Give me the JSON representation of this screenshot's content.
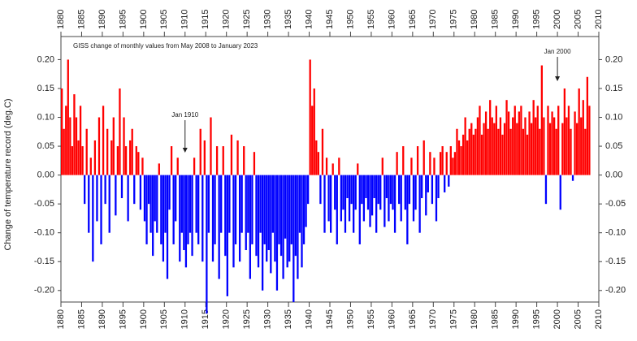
{
  "chart_data": {
    "type": "bar",
    "title": "GISS change of monthly values from May 2008 to January 2023",
    "y_label": "Change of temperature record (deg.C)",
    "positive_color": "#ff0000",
    "negative_color": "#0000ff",
    "xlim": [
      1880,
      2010
    ],
    "xticks": [
      1880,
      1885,
      1890,
      1895,
      1900,
      1905,
      1910,
      1915,
      1920,
      1925,
      1930,
      1935,
      1940,
      1945,
      1950,
      1955,
      1960,
      1965,
      1970,
      1975,
      1980,
      1985,
      1990,
      1995,
      2000,
      2005,
      2010
    ],
    "ylim": [
      -0.22,
      0.24
    ],
    "yticks": [
      {
        "value": -0.2,
        "label": "-0.20"
      },
      {
        "value": -0.15,
        "label": "-0.15"
      },
      {
        "value": -0.1,
        "label": "-0.10"
      },
      {
        "value": -0.05,
        "label": "-0.05"
      },
      {
        "value": 0,
        "label": "0.00"
      },
      {
        "value": 0.05,
        "label": "0.05"
      },
      {
        "value": 0.1,
        "label": "0.10"
      },
      {
        "value": 0.15,
        "label": "0.15"
      },
      {
        "value": 0.2,
        "label": "0.20"
      }
    ],
    "annotations": [
      {
        "text": "Jan 1910",
        "x": 1910
      },
      {
        "text": "Jan 2000",
        "x": 2000
      }
    ],
    "x": [
      1880,
      1880.5,
      1881,
      1881.5,
      1882,
      1882.5,
      1883,
      1883.5,
      1884,
      1884.5,
      1885,
      1885.5,
      1886,
      1886.5,
      1887,
      1887.5,
      1888,
      1888.5,
      1889,
      1889.5,
      1890,
      1890.5,
      1891,
      1891.5,
      1892,
      1892.5,
      1893,
      1893.5,
      1894,
      1894.5,
      1895,
      1895.5,
      1896,
      1896.5,
      1897,
      1897.5,
      1898,
      1898.5,
      1899,
      1899.5,
      1900,
      1900.5,
      1901,
      1901.5,
      1902,
      1902.5,
      1903,
      1903.5,
      1904,
      1904.5,
      1905,
      1905.5,
      1906,
      1906.5,
      1907,
      1907.5,
      1908,
      1908.5,
      1909,
      1909.5,
      1910,
      1910.5,
      1911,
      1911.5,
      1912,
      1912.5,
      1913,
      1913.5,
      1914,
      1914.5,
      1915,
      1915.5,
      1916,
      1916.5,
      1917,
      1917.5,
      1918,
      1918.5,
      1919,
      1919.5,
      1920,
      1920.5,
      1921,
      1921.5,
      1922,
      1922.5,
      1923,
      1923.5,
      1924,
      1924.5,
      1925,
      1925.5,
      1926,
      1926.5,
      1927,
      1927.5,
      1928,
      1928.5,
      1929,
      1929.5,
      1930,
      1930.5,
      1931,
      1931.5,
      1932,
      1932.5,
      1933,
      1933.5,
      1934,
      1934.5,
      1935,
      1935.5,
      1936,
      1936.5,
      1937,
      1937.5,
      1938,
      1938.5,
      1939,
      1939.5,
      1940,
      1940.5,
      1941,
      1941.5,
      1942,
      1942.5,
      1943,
      1943.5,
      1944,
      1944.5,
      1945,
      1945.5,
      1946,
      1946.5,
      1947,
      1947.5,
      1948,
      1948.5,
      1949,
      1949.5,
      1950,
      1950.5,
      1951,
      1951.5,
      1952,
      1952.5,
      1953,
      1953.5,
      1954,
      1954.5,
      1955,
      1955.5,
      1956,
      1956.5,
      1957,
      1957.5,
      1958,
      1958.5,
      1959,
      1959.5,
      1960,
      1960.5,
      1961,
      1961.5,
      1962,
      1962.5,
      1963,
      1963.5,
      1964,
      1964.5,
      1965,
      1965.5,
      1966,
      1966.5,
      1967,
      1967.5,
      1968,
      1968.5,
      1969,
      1969.5,
      1970,
      1970.5,
      1971,
      1971.5,
      1972,
      1972.5,
      1973,
      1973.5,
      1974,
      1974.5,
      1975,
      1975.5,
      1976,
      1976.5,
      1977,
      1977.5,
      1978,
      1978.5,
      1979,
      1979.5,
      1980,
      1980.5,
      1981,
      1981.5,
      1982,
      1982.5,
      1983,
      1983.5,
      1984,
      1984.5,
      1985,
      1985.5,
      1986,
      1986.5,
      1987,
      1987.5,
      1988,
      1988.5,
      1989,
      1989.5,
      1990,
      1990.5,
      1991,
      1991.5,
      1992,
      1992.5,
      1993,
      1993.5,
      1994,
      1994.5,
      1995,
      1995.5,
      1996,
      1996.5,
      1997,
      1997.5,
      1998,
      1998.5,
      1999,
      1999.5,
      2000,
      2000.5,
      2001,
      2001.5,
      2002,
      2002.5,
      2003,
      2003.5,
      2004,
      2004.5,
      2005,
      2005.5,
      2006,
      2006.5,
      2007,
      2007.5
    ],
    "values": [
      0.15,
      0.08,
      0.12,
      0.2,
      0.1,
      0.05,
      0.14,
      0.1,
      0.06,
      0.12,
      0.05,
      -0.05,
      0.08,
      -0.1,
      0.03,
      -0.15,
      0.06,
      -0.08,
      0.1,
      -0.12,
      0.12,
      -0.05,
      0.08,
      -0.1,
      0.06,
      0.1,
      -0.07,
      0.05,
      0.15,
      -0.04,
      0.1,
      0.05,
      -0.08,
      0.06,
      0.08,
      -0.05,
      0.05,
      0.04,
      -0.06,
      0.03,
      -0.08,
      -0.12,
      -0.05,
      -0.1,
      -0.14,
      -0.08,
      -0.1,
      0.02,
      -0.12,
      -0.15,
      -0.1,
      -0.18,
      -0.06,
      0.05,
      -0.12,
      -0.08,
      0.03,
      -0.15,
      -0.1,
      -0.13,
      -0.16,
      -0.12,
      -0.1,
      -0.14,
      0.03,
      -0.1,
      -0.12,
      0.08,
      -0.15,
      0.06,
      -0.24,
      -0.1,
      0.1,
      -0.15,
      -0.12,
      0.05,
      -0.18,
      -0.1,
      0.05,
      -0.14,
      -0.21,
      -0.1,
      0.07,
      -0.16,
      -0.12,
      0.06,
      -0.15,
      -0.1,
      0.05,
      -0.13,
      -0.1,
      -0.18,
      -0.12,
      0.04,
      -0.14,
      -0.16,
      -0.1,
      -0.2,
      -0.12,
      -0.15,
      -0.13,
      -0.17,
      -0.1,
      -0.15,
      -0.2,
      -0.12,
      -0.14,
      -0.18,
      -0.11,
      -0.16,
      -0.15,
      -0.12,
      -0.22,
      -0.14,
      -0.18,
      -0.1,
      -0.16,
      -0.12,
      -0.09,
      -0.05,
      0.2,
      0.12,
      0.15,
      0.06,
      0.04,
      -0.05,
      0.08,
      -0.1,
      0.03,
      -0.08,
      -0.1,
      0.02,
      -0.06,
      -0.12,
      0.03,
      -0.08,
      -0.06,
      -0.1,
      -0.04,
      -0.08,
      -0.05,
      -0.1,
      -0.06,
      0.02,
      -0.12,
      -0.05,
      -0.08,
      -0.04,
      -0.06,
      -0.09,
      -0.07,
      -0.04,
      -0.1,
      -0.05,
      -0.06,
      0.03,
      -0.09,
      -0.04,
      -0.08,
      -0.05,
      -0.06,
      -0.1,
      0.04,
      -0.05,
      -0.08,
      0.05,
      -0.06,
      -0.12,
      -0.05,
      0.03,
      -0.08,
      -0.06,
      0.05,
      -0.1,
      -0.04,
      0.06,
      -0.07,
      -0.03,
      0.04,
      -0.05,
      0.03,
      -0.08,
      -0.04,
      0.04,
      0.05,
      -0.03,
      0.04,
      -0.02,
      0.05,
      0.03,
      0.04,
      0.08,
      0.06,
      0.05,
      0.07,
      0.1,
      0.06,
      0.08,
      0.09,
      0.07,
      0.08,
      0.1,
      0.12,
      0.07,
      0.09,
      0.11,
      0.08,
      0.13,
      0.1,
      0.09,
      0.12,
      0.08,
      0.1,
      0.07,
      0.09,
      0.13,
      0.11,
      0.08,
      0.1,
      0.12,
      0.09,
      0.11,
      0.12,
      0.08,
      0.1,
      0.07,
      0.11,
      0.09,
      0.13,
      0.1,
      0.12,
      0.08,
      0.19,
      0.1,
      -0.05,
      0.12,
      0.09,
      0.11,
      0.1,
      0.08,
      0.12,
      -0.06,
      0.09,
      0.15,
      0.1,
      0.12,
      0.08,
      -0.01,
      0.11,
      0.09,
      0.15,
      0.1,
      0.13,
      0.08,
      0.17,
      0.12
    ]
  }
}
